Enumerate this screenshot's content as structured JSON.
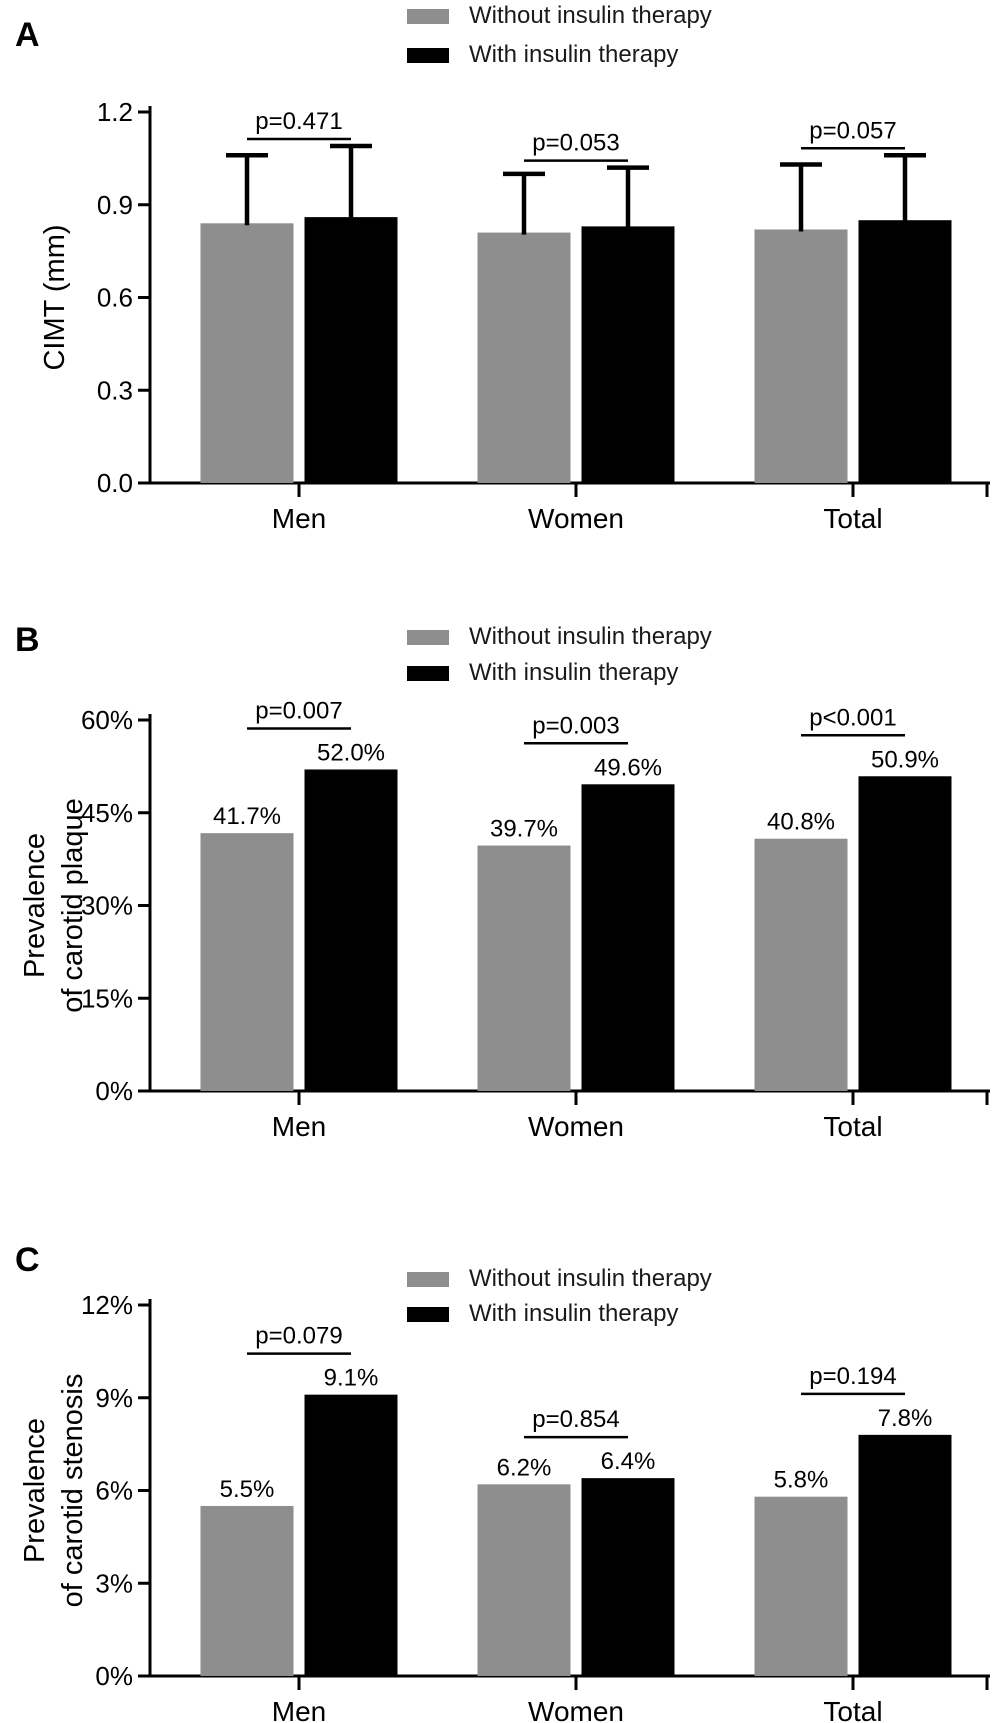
{
  "legend": {
    "items": [
      {
        "label": "Without insulin therapy",
        "color": "#8e8e8e"
      },
      {
        "label": "With insulin therapy",
        "color": "#000000"
      }
    ]
  },
  "chart_data": [
    {
      "panel": "A",
      "type": "bar",
      "title": "",
      "ylabel_lines": [
        "CIMT (mm)"
      ],
      "categories": [
        "Men",
        "Women",
        "Total"
      ],
      "series": [
        {
          "name": "Without insulin therapy",
          "color": "#8e8e8e",
          "values": [
            0.84,
            0.81,
            0.82
          ],
          "error_top": [
            1.06,
            1.0,
            1.03
          ],
          "value_labels": null
        },
        {
          "name": "With insulin therapy",
          "color": "#000000",
          "values": [
            0.86,
            0.83,
            0.85
          ],
          "error_top": [
            1.09,
            1.02,
            1.06
          ],
          "value_labels": null
        }
      ],
      "p_values": [
        "p=0.471",
        "p=0.053",
        "p=0.057"
      ],
      "ylim": [
        0,
        1.2
      ],
      "yticks": [
        0,
        0.3,
        0.6,
        0.9,
        1.2
      ],
      "ytick_labels": [
        "0.0",
        "0.3",
        "0.6",
        "0.9",
        "1.2"
      ],
      "grid": false,
      "legend_position": "top-center",
      "error_bars": "upper SD whisker"
    },
    {
      "panel": "B",
      "type": "bar",
      "title": "",
      "ylabel_lines": [
        "Prevalence",
        "of carotid plaque"
      ],
      "categories": [
        "Men",
        "Women",
        "Total"
      ],
      "series": [
        {
          "name": "Without insulin therapy",
          "color": "#8e8e8e",
          "values": [
            41.7,
            39.7,
            40.8
          ],
          "error_top": null,
          "value_labels": [
            "41.7%",
            "39.7%",
            "40.8%"
          ]
        },
        {
          "name": "With insulin therapy",
          "color": "#000000",
          "values": [
            52.0,
            49.6,
            50.9
          ],
          "error_top": null,
          "value_labels": [
            "52.0%",
            "49.6%",
            "50.9%"
          ]
        }
      ],
      "p_values": [
        "p=0.007",
        "p=0.003",
        "p<0.001"
      ],
      "ylim": [
        0,
        60
      ],
      "yticks": [
        0,
        15,
        30,
        45,
        60
      ],
      "ytick_labels": [
        "0%",
        "15%",
        "30%",
        "45%",
        "60%"
      ],
      "grid": false,
      "legend_position": "top-center",
      "error_bars": "none"
    },
    {
      "panel": "C",
      "type": "bar",
      "title": "",
      "ylabel_lines": [
        "Prevalence",
        "of carotid stenosis"
      ],
      "categories": [
        "Men",
        "Women",
        "Total"
      ],
      "series": [
        {
          "name": "Without insulin therapy",
          "color": "#8e8e8e",
          "values": [
            5.5,
            6.2,
            5.8
          ],
          "error_top": null,
          "value_labels": [
            "5.5%",
            "6.2%",
            "5.8%"
          ]
        },
        {
          "name": "With insulin therapy",
          "color": "#000000",
          "values": [
            9.1,
            6.4,
            7.8
          ],
          "error_top": null,
          "value_labels": [
            "9.1%",
            "6.4%",
            "7.8%"
          ]
        }
      ],
      "p_values": [
        "p=0.079",
        "p=0.854",
        "p=0.194"
      ],
      "ylim": [
        0,
        12
      ],
      "yticks": [
        0,
        3,
        6,
        9,
        12
      ],
      "ytick_labels": [
        "0%",
        "3%",
        "6%",
        "9%",
        "12%"
      ],
      "grid": false,
      "legend_position": "top-center",
      "error_bars": "none"
    }
  ]
}
